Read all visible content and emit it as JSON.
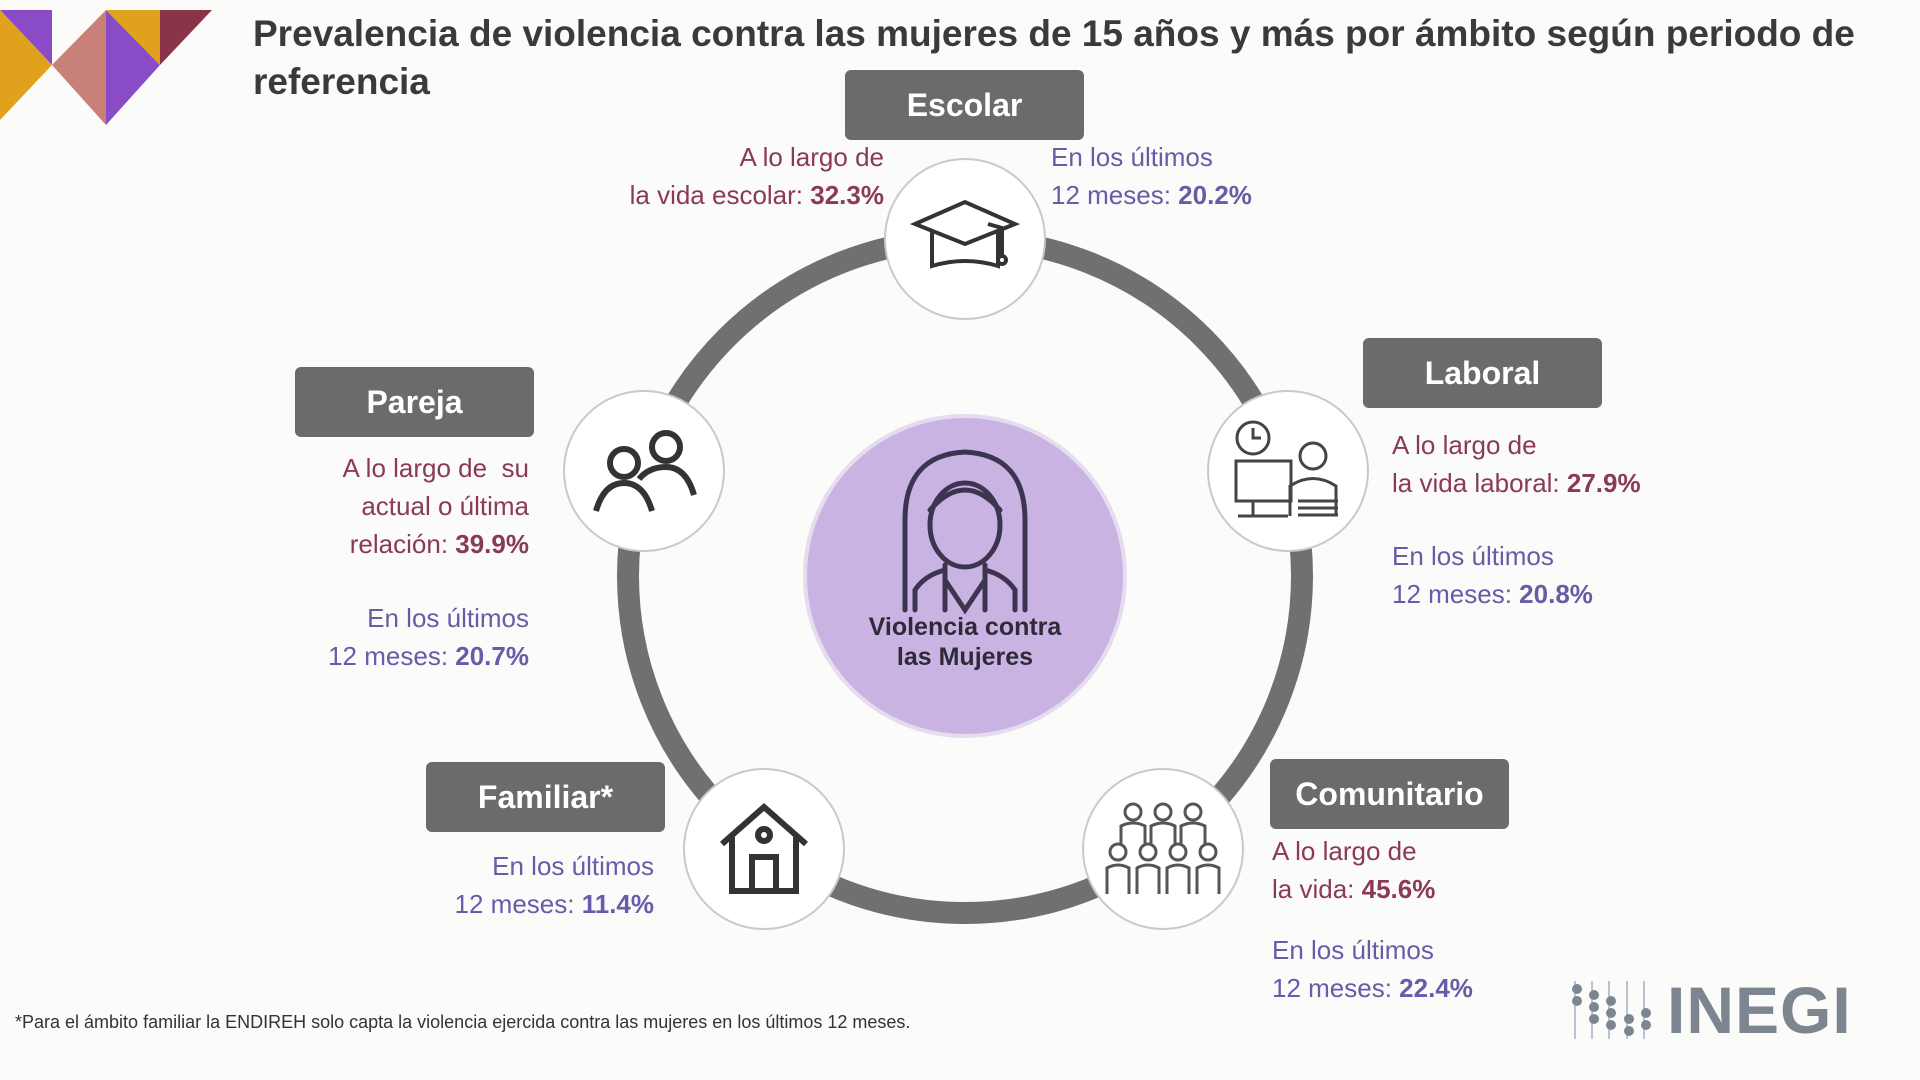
{
  "title": "Prevalencia de violencia contra las mujeres de 15 años y más por ámbito según periodo de referencia",
  "center_label_1": "Violencia contra",
  "center_label_2": "las Mujeres",
  "colors": {
    "lifetime": "#8a3a55",
    "last12": "#6a5aa8",
    "box": "#6b6b6b",
    "ring": "#707070",
    "center": "#c9b3e3"
  },
  "escolar": {
    "label": "Escolar",
    "icon": "graduation-cap-icon",
    "life_1": "A lo largo de",
    "life_2": "la vida escolar: ",
    "life_val": "32.3%",
    "last_1": "En los últimos",
    "last_2": "12 meses: ",
    "last_val": "20.2%"
  },
  "laboral": {
    "label": "Laboral",
    "icon": "worker-desk-icon",
    "life_1": "A lo largo de",
    "life_2": "la vida laboral: ",
    "life_val": "27.9%",
    "last_1": "En los últimos",
    "last_2": "12 meses: ",
    "last_val": "20.8%"
  },
  "comunitario": {
    "label": "Comunitario",
    "icon": "community-icon",
    "life_1": "A lo largo de",
    "life_2": "la vida: ",
    "life_val": "45.6%",
    "last_1": "En los últimos",
    "last_2": "12 meses: ",
    "last_val": "22.4%"
  },
  "familiar": {
    "label": "Familiar*",
    "icon": "house-icon",
    "last_1": "En los últimos",
    "last_2": "12 meses: ",
    "last_val": "11.4%"
  },
  "pareja": {
    "label": "Pareja",
    "icon": "couple-icon",
    "life_1": "A lo largo de  su",
    "life_2": "actual o última",
    "life_3": "relación: ",
    "life_val": "39.9%",
    "last_1": "En los últimos",
    "last_2": "12 meses: ",
    "last_val": "20.7%"
  },
  "footnote": "*Para el ámbito familiar la ENDIREH solo capta la violencia ejercida contra las mujeres en los últimos 12 meses.",
  "logo": "INEGI"
}
